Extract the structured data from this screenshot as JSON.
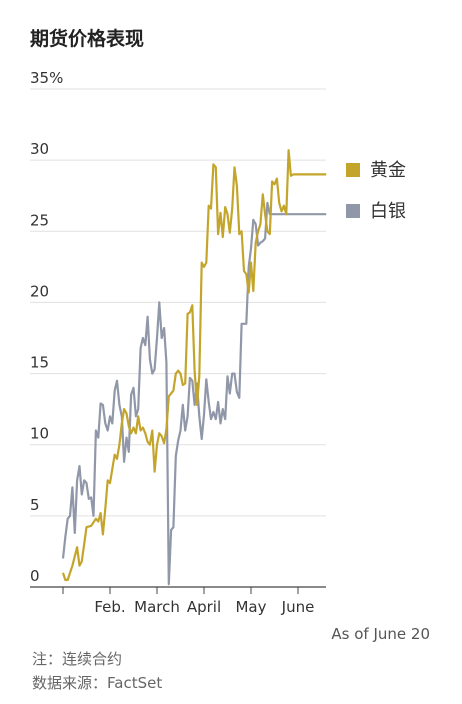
{
  "title": "期货价格表现",
  "as_of": "As of June 20",
  "note": "注：连续合约",
  "source": "数据来源：FactSet",
  "colors": {
    "gold": "#c4a52c",
    "silver": "#9097a8",
    "grid": "#e0e0e0",
    "axis": "#444444"
  },
  "chart_data": {
    "type": "line",
    "title": "期货价格表现",
    "y_unit": "%",
    "ylim": [
      0,
      35
    ],
    "y_ticks": [
      0,
      5,
      10,
      15,
      20,
      25,
      30,
      35
    ],
    "y_tick_labels": [
      "0",
      "5",
      "10",
      "15",
      "20",
      "25",
      "30",
      "35%"
    ],
    "x_tick_labels": [
      "Feb.",
      "March",
      "April",
      "May",
      "June"
    ],
    "x_tick_positions": [
      1,
      2,
      3,
      4,
      5
    ],
    "xlim": [
      0.0,
      5.7
    ],
    "legend_position": "right",
    "series": [
      {
        "name": "黄金",
        "color": "#c4a52c",
        "x": [
          0.0,
          0.05,
          0.1,
          0.2,
          0.3,
          0.35,
          0.4,
          0.5,
          0.6,
          0.7,
          0.75,
          0.8,
          0.85,
          0.9,
          0.95,
          1.0,
          1.05,
          1.1,
          1.15,
          1.2,
          1.25,
          1.3,
          1.35,
          1.4,
          1.45,
          1.5,
          1.55,
          1.6,
          1.65,
          1.7,
          1.75,
          1.8,
          1.85,
          1.9,
          1.95,
          2.0,
          2.05,
          2.1,
          2.15,
          2.2,
          2.25,
          2.3,
          2.35,
          2.4,
          2.45,
          2.5,
          2.55,
          2.6,
          2.65,
          2.7,
          2.75,
          2.8,
          2.85,
          2.9,
          2.95,
          3.0,
          3.05,
          3.1,
          3.15,
          3.2,
          3.25,
          3.3,
          3.35,
          3.4,
          3.45,
          3.5,
          3.55,
          3.6,
          3.65,
          3.7,
          3.75,
          3.8,
          3.85,
          3.9,
          3.95,
          4.0,
          4.05,
          4.1,
          4.15,
          4.2,
          4.25,
          4.3,
          4.35,
          4.4,
          4.45,
          4.5,
          4.55,
          4.6,
          4.65,
          4.7,
          4.75,
          4.8,
          4.85,
          4.9,
          4.95,
          5.0,
          5.05,
          5.1,
          5.15,
          5.2,
          5.25,
          5.3,
          5.35,
          5.4,
          5.45,
          5.5,
          5.55,
          5.6
        ],
        "values": [
          1.0,
          0.5,
          0.5,
          1.5,
          2.8,
          1.5,
          1.8,
          4.2,
          4.3,
          4.8,
          4.6,
          5.2,
          3.7,
          5.5,
          7.5,
          7.3,
          8.3,
          9.3,
          9.0,
          10.0,
          11.5,
          12.5,
          12.2,
          11.3,
          10.8,
          11.2,
          10.8,
          12.0,
          11.0,
          11.2,
          10.8,
          10.2,
          10.0,
          11.0,
          8.1,
          10.0,
          10.8,
          10.6,
          10.1,
          11.1,
          13.4,
          13.6,
          13.8,
          15.0,
          15.2,
          15.0,
          14.2,
          14.3,
          19.2,
          19.3,
          19.8,
          15.2,
          12.8,
          14.8,
          22.8,
          22.5,
          22.8,
          26.8,
          26.6,
          29.7,
          29.5,
          24.8,
          26.3,
          24.6,
          26.7,
          26.2,
          24.9,
          26.6,
          29.5,
          28.2,
          24.8,
          25.0,
          22.2,
          22.0,
          20.7,
          22.8,
          20.8,
          24.2,
          25.0,
          25.5,
          27.6,
          26.2,
          25.0,
          24.8,
          28.5,
          28.3,
          28.7,
          27.0,
          26.4,
          26.8,
          26.2,
          30.7,
          28.9,
          29.0,
          29.0,
          29.0,
          29.0,
          29.0,
          29.0,
          29.0,
          29.0,
          29.0,
          29.0,
          29.0,
          29.0,
          29.0,
          29.0,
          29.0
        ]
      },
      {
        "name": "白银",
        "color": "#9097a8",
        "x": [
          0.0,
          0.05,
          0.1,
          0.15,
          0.2,
          0.25,
          0.3,
          0.35,
          0.4,
          0.45,
          0.5,
          0.55,
          0.6,
          0.65,
          0.7,
          0.75,
          0.8,
          0.85,
          0.9,
          0.95,
          1.0,
          1.05,
          1.1,
          1.15,
          1.2,
          1.25,
          1.3,
          1.35,
          1.4,
          1.45,
          1.5,
          1.55,
          1.6,
          1.65,
          1.7,
          1.75,
          1.8,
          1.85,
          1.9,
          1.95,
          2.0,
          2.05,
          2.1,
          2.15,
          2.2,
          2.25,
          2.3,
          2.35,
          2.4,
          2.45,
          2.5,
          2.55,
          2.6,
          2.65,
          2.7,
          2.75,
          2.8,
          2.85,
          2.9,
          2.95,
          3.0,
          3.05,
          3.1,
          3.15,
          3.2,
          3.25,
          3.3,
          3.35,
          3.4,
          3.45,
          3.5,
          3.55,
          3.6,
          3.65,
          3.7,
          3.75,
          3.8,
          3.85,
          3.9,
          3.95,
          4.0,
          4.05,
          4.1,
          4.15,
          4.2,
          4.25,
          4.3,
          4.35,
          4.4,
          4.45,
          4.5,
          4.55,
          4.6,
          4.65,
          4.7,
          4.75,
          4.8,
          4.85,
          4.9,
          4.95,
          5.0,
          5.05,
          5.1,
          5.15,
          5.2,
          5.25,
          5.3,
          5.35,
          5.4,
          5.45,
          5.5,
          5.55,
          5.6
        ],
        "values": [
          2.0,
          3.5,
          4.8,
          5.0,
          7.0,
          3.8,
          7.5,
          8.5,
          6.5,
          7.5,
          7.3,
          6.2,
          6.3,
          5.0,
          11.0,
          10.5,
          12.9,
          12.8,
          11.5,
          11.0,
          12.0,
          11.5,
          13.8,
          14.5,
          12.8,
          12.0,
          8.8,
          10.5,
          9.5,
          13.5,
          14.0,
          12.0,
          12.5,
          16.8,
          17.5,
          17.0,
          19.0,
          16.0,
          15.0,
          15.3,
          17.5,
          20.0,
          17.5,
          18.2,
          15.8,
          0.2,
          4.0,
          4.2,
          9.2,
          10.3,
          11.0,
          12.8,
          11.0,
          12.0,
          14.7,
          14.5,
          12.8,
          14.3,
          12.0,
          10.4,
          12.1,
          14.6,
          13.0,
          11.8,
          12.3,
          11.8,
          13.0,
          11.5,
          12.5,
          11.8,
          14.8,
          13.6,
          15.0,
          15.0,
          13.7,
          13.3,
          18.5,
          18.5,
          18.5,
          22.5,
          23.8,
          25.8,
          25.5,
          24.0,
          24.2,
          24.3,
          24.5,
          27.0,
          26.2,
          26.2,
          26.2,
          26.2,
          26.2,
          26.2,
          26.2,
          26.2,
          26.2,
          26.2,
          26.2,
          26.2,
          26.2,
          26.2,
          26.2,
          26.2,
          26.2,
          26.2,
          26.2,
          26.2,
          26.2,
          26.2,
          26.2,
          26.2,
          26.2
        ]
      }
    ]
  }
}
